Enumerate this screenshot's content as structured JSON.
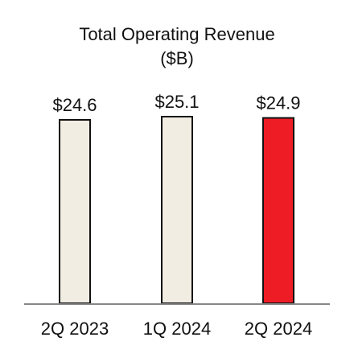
{
  "chart_data": {
    "type": "bar",
    "title": "Total Operating Revenue",
    "subtitle": "($B)",
    "categories": [
      "2Q 2023",
      "1Q 2024",
      "2Q 2024"
    ],
    "values": [
      24.6,
      25.1,
      24.9
    ],
    "value_labels": [
      "$24.6",
      "$25.1",
      "$24.9"
    ],
    "ylim": [
      0,
      25.1
    ],
    "xlabel": "",
    "ylabel": "",
    "grid": false,
    "legend": "none",
    "colors": {
      "default_bar": "#F2EDE3",
      "highlight_bar": "#EE1C25",
      "bar_outline": "#111111",
      "axis": "#888888"
    },
    "highlight_index": 2
  }
}
